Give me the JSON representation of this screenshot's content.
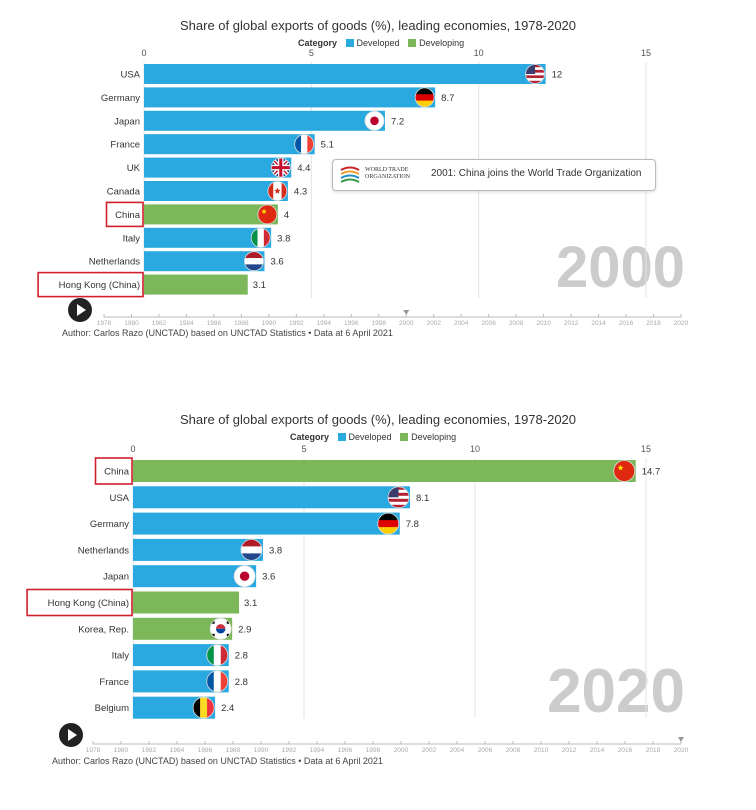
{
  "colors": {
    "developed": "#2aa8e0",
    "developing": "#7cb75a",
    "highlight": "#d0202e",
    "grid": "#e3e3e3",
    "year_label": "#cccccc"
  },
  "legend": {
    "title": "Category",
    "items": [
      {
        "label": "Developed",
        "color": "#2aa8e0"
      },
      {
        "label": "Developing",
        "color": "#7cb75a"
      }
    ]
  },
  "timeline": {
    "ticks": [
      "1978",
      "1980",
      "1982",
      "1984",
      "1986",
      "1988",
      "1990",
      "1992",
      "1994",
      "1996",
      "1998",
      "2000",
      "2002",
      "2004",
      "2006",
      "2008",
      "2010",
      "2012",
      "2014",
      "2016",
      "2018",
      "2020"
    ]
  },
  "author": "Author: Carlos Razo (UNCTAD) based on UNCTAD Statistics • Data at 6 April 2021",
  "annotation": {
    "logo_text": "WORLD TRADE ORGANIZATION",
    "text": "2001: China joins the World Trade Organization"
  },
  "chart_data": [
    {
      "type": "bar",
      "title": "Share of global exports of goods (%), leading economies, 1978-2020",
      "year": "2000",
      "current_year": 2000,
      "xlim": [
        0,
        15
      ],
      "xticks": [
        0,
        5,
        10,
        15
      ],
      "categories": [
        "USA",
        "Germany",
        "Japan",
        "France",
        "UK",
        "Canada",
        "China",
        "Italy",
        "Netherlands",
        "Hong Kong (China)"
      ],
      "values": [
        12,
        8.7,
        7.2,
        5.1,
        4.4,
        4.3,
        4,
        3.8,
        3.6,
        3.1
      ],
      "value_labels": [
        "12",
        "8.7",
        "7.2",
        "5.1",
        "4.4",
        "4.3",
        "4",
        "3.8",
        "3.6",
        "3.1"
      ],
      "group": [
        "Developed",
        "Developed",
        "Developed",
        "Developed",
        "Developed",
        "Developed",
        "Developing",
        "Developed",
        "Developed",
        "Developing"
      ],
      "flags": [
        "usa-flag-icon",
        "germany-flag-icon",
        "japan-flag-icon",
        "france-flag-icon",
        "uk-flag-icon",
        "canada-flag-icon",
        "china-flag-icon",
        "italy-flag-icon",
        "netherlands-flag-icon",
        ""
      ],
      "highlighted": [
        "China",
        "Hong Kong (China)"
      ],
      "grid": true
    },
    {
      "type": "bar",
      "title": "Share of global exports of goods (%), leading economies, 1978-2020",
      "year": "2020",
      "current_year": 2020,
      "xlim": [
        0,
        15
      ],
      "xticks": [
        0,
        5,
        10,
        15
      ],
      "categories": [
        "China",
        "USA",
        "Germany",
        "Netherlands",
        "Japan",
        "Hong Kong (China)",
        "Korea, Rep.",
        "Italy",
        "France",
        "Belgium"
      ],
      "values": [
        14.7,
        8.1,
        7.8,
        3.8,
        3.6,
        3.1,
        2.9,
        2.8,
        2.8,
        2.4
      ],
      "value_labels": [
        "14.7",
        "8.1",
        "7.8",
        "3.8",
        "3.6",
        "3.1",
        "2.9",
        "2.8",
        "2.8",
        "2.4"
      ],
      "group": [
        "Developing",
        "Developed",
        "Developed",
        "Developed",
        "Developed",
        "Developing",
        "Developing",
        "Developed",
        "Developed",
        "Developed"
      ],
      "flags": [
        "china-flag-icon",
        "usa-flag-icon",
        "germany-flag-icon",
        "netherlands-flag-icon",
        "japan-flag-icon",
        "",
        "korea-flag-icon",
        "italy-flag-icon",
        "france-flag-icon",
        "belgium-flag-icon"
      ],
      "highlighted": [
        "China",
        "Hong Kong (China)"
      ],
      "grid": true
    }
  ]
}
